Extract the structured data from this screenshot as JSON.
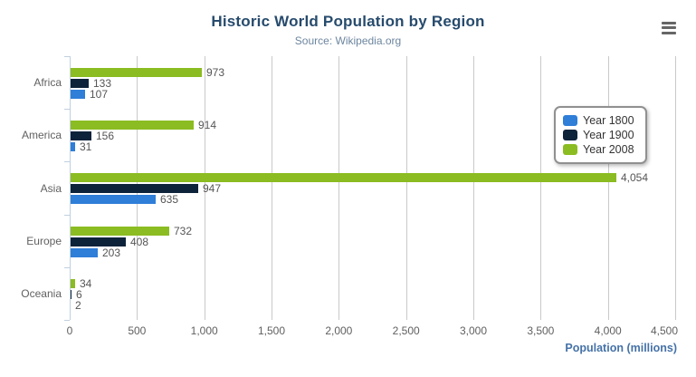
{
  "chart_data": {
    "type": "bar",
    "orientation": "horizontal",
    "title": "Historic World Population by Region",
    "subtitle": "Source: Wikipedia.org",
    "categories": [
      "Africa",
      "America",
      "Asia",
      "Europe",
      "Oceania"
    ],
    "series": [
      {
        "name": "Year 1800",
        "color": "#2f7ed8",
        "values": [
          107,
          31,
          635,
          203,
          2
        ],
        "labels": [
          "107",
          "31",
          "635",
          "203",
          "2"
        ]
      },
      {
        "name": "Year 1900",
        "color": "#0d233a",
        "values": [
          133,
          156,
          947,
          408,
          6
        ],
        "labels": [
          "133",
          "156",
          "947",
          "408",
          "6"
        ]
      },
      {
        "name": "Year 2008",
        "color": "#8bbc21",
        "values": [
          973,
          914,
          4054,
          732,
          34
        ],
        "labels": [
          "973",
          "914",
          "4,054",
          "732",
          "34"
        ]
      }
    ],
    "display_order_top_to_bottom": [
      "Year 2008",
      "Year 1900",
      "Year 1800"
    ],
    "xlabel": "Population (millions)",
    "ylabel": "",
    "xlim": [
      0,
      4500
    ],
    "x_ticks": [
      0,
      500,
      1000,
      1500,
      2000,
      2500,
      3000,
      3500,
      4000,
      4500
    ],
    "x_tick_labels": [
      "0",
      "500",
      "1,000",
      "1,500",
      "2,000",
      "2,500",
      "3,000",
      "3,500",
      "4,000",
      "4,500"
    ],
    "grid": "vertical",
    "data_labels": true,
    "legend": {
      "position": "middle-right",
      "items": [
        "Year 1800",
        "Year 1900",
        "Year 2008"
      ]
    }
  },
  "toolbar": {
    "context_menu_icon": "hamburger-menu-icon"
  },
  "colors": {
    "title": "#274b6d",
    "subtitle": "#6d869f",
    "axis_title": "#4572a7",
    "tick_label": "#606060",
    "category_label": "#606060",
    "data_label": "#555555",
    "gridline": "#c9c9c9",
    "axis_line": "#c0d0e0",
    "legend_border": "#909090",
    "menu_icon": "#666666",
    "background": "#ffffff"
  }
}
